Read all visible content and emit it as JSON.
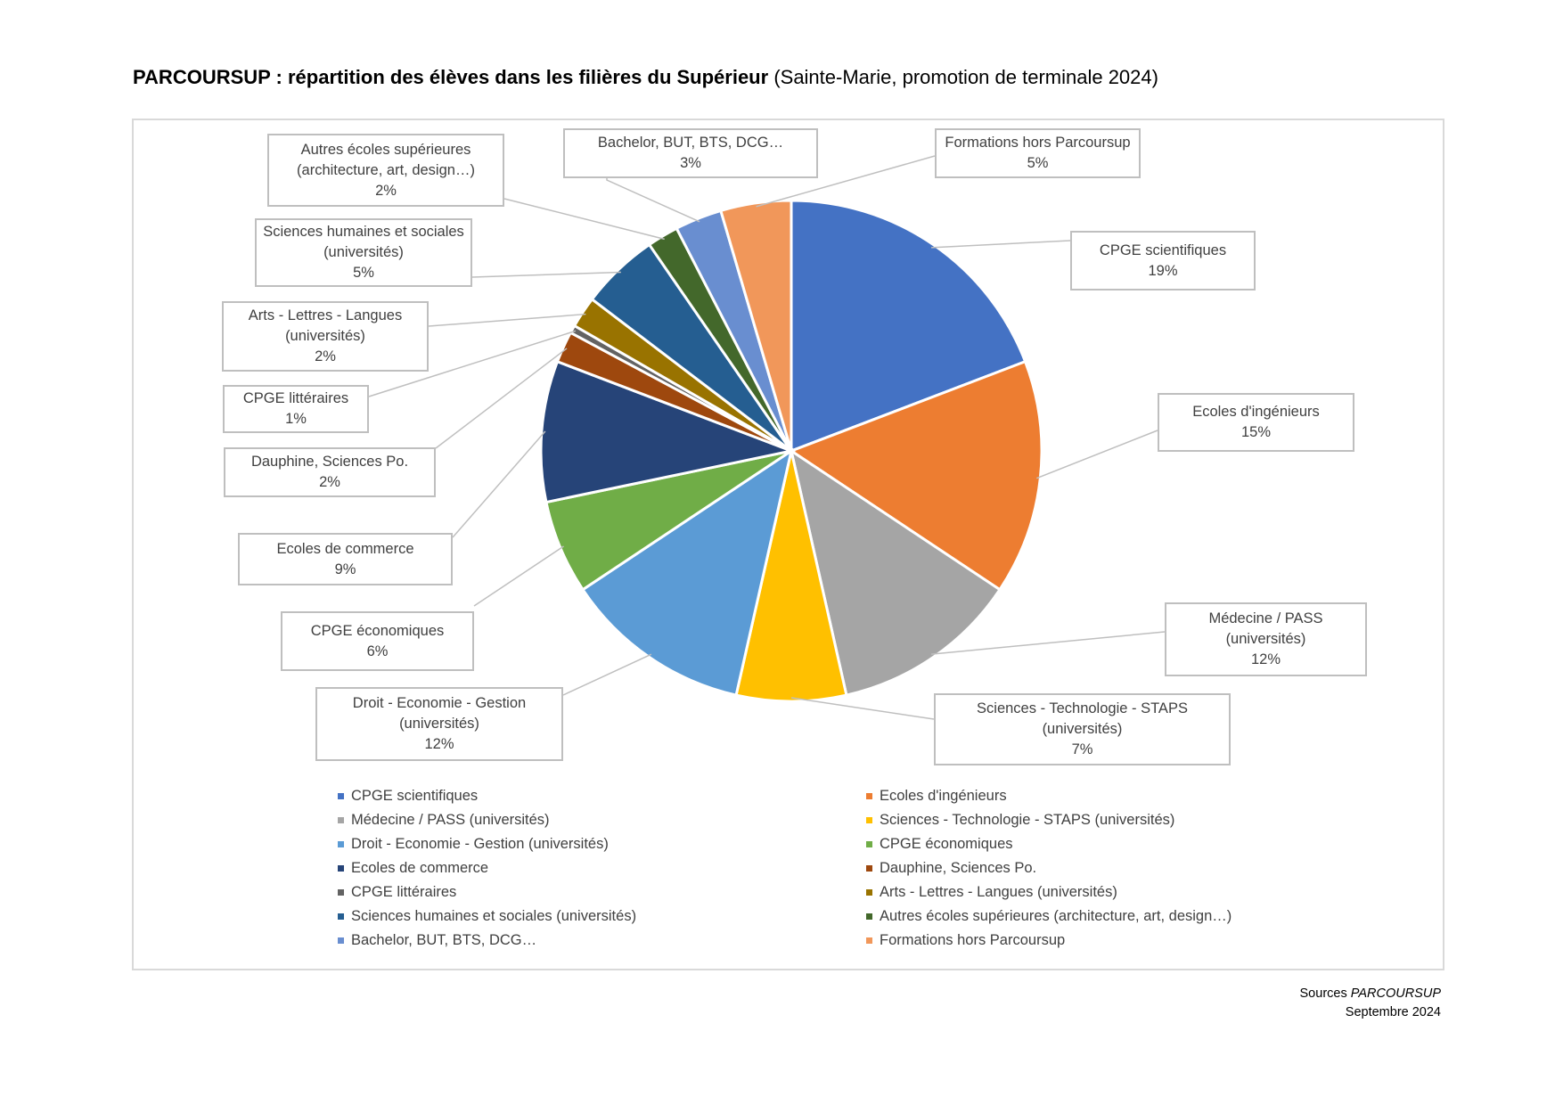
{
  "header": {
    "title_bold": "PARCOURSUP : répartition des élèves dans les filières du Supérieur",
    "title_sub": "(Sainte-Marie, promotion de terminale 2024)"
  },
  "footer": {
    "source_prefix": "Sources",
    "source_name": "PARCOURSUP",
    "date": "Septembre 2024"
  },
  "chart_data": {
    "type": "pie",
    "slices": [
      {
        "label": "CPGE scientifiques",
        "callout": [
          "CPGE scientifiques"
        ],
        "value": 19,
        "value_label": "19%",
        "color": "#4472C4"
      },
      {
        "label": "Ecoles d'ingénieurs",
        "callout": [
          "Ecoles d'ingénieurs"
        ],
        "value": 15,
        "value_label": "15%",
        "color": "#ED7D31"
      },
      {
        "label": "Médecine / PASS (universités)",
        "callout": [
          "Médecine / PASS",
          "(universités)"
        ],
        "value": 12,
        "value_label": "12%",
        "color": "#A5A5A5"
      },
      {
        "label": "Sciences - Technologie - STAPS (universités)",
        "callout": [
          "Sciences - Technologie - STAPS",
          "(universités)"
        ],
        "value": 7,
        "value_label": "7%",
        "color": "#FFC000"
      },
      {
        "label": "Droit - Economie - Gestion (universités)",
        "callout": [
          "Droit - Economie - Gestion",
          "(universités)"
        ],
        "value": 12,
        "value_label": "12%",
        "color": "#5B9BD5"
      },
      {
        "label": "CPGE économiques",
        "callout": [
          "CPGE économiques"
        ],
        "value": 6,
        "value_label": "6%",
        "color": "#70AD47"
      },
      {
        "label": "Ecoles de commerce",
        "callout": [
          "Ecoles de commerce"
        ],
        "value": 9,
        "value_label": "9%",
        "color": "#264478"
      },
      {
        "label": "Dauphine, Sciences Po.",
        "callout": [
          "Dauphine, Sciences Po."
        ],
        "value": 2,
        "value_label": "2%",
        "color": "#9E480E"
      },
      {
        "label": "CPGE littéraires",
        "callout": [
          "CPGE littéraires"
        ],
        "value": 0.5,
        "value_label": "1%",
        "color": "#636363"
      },
      {
        "label": "Arts - Lettres - Langues (universités)",
        "callout": [
          "Arts - Lettres - Langues",
          "(universités)"
        ],
        "value": 2,
        "value_label": "2%",
        "color": "#997300"
      },
      {
        "label": "Sciences humaines et sociales (universités)",
        "callout": [
          "Sciences humaines et sociales",
          "(universités)"
        ],
        "value": 5,
        "value_label": "5%",
        "color": "#255E91"
      },
      {
        "label": "Autres écoles supérieures (architecture, art, design…)",
        "callout": [
          "Autres écoles supérieures",
          "(architecture, art, design…)"
        ],
        "value": 2,
        "value_label": "2%",
        "color": "#43682B"
      },
      {
        "label": "Bachelor, BUT, BTS, DCG…",
        "callout": [
          "Bachelor, BUT, BTS, DCG…"
        ],
        "value": 3,
        "value_label": "3%",
        "color": "#698ED0"
      },
      {
        "label": "Formations hors Parcoursup",
        "callout": [
          "Formations hors Parcoursup"
        ],
        "value": 4.5,
        "value_label": "5%",
        "color": "#F1975A"
      }
    ],
    "legend_position": "bottom"
  }
}
